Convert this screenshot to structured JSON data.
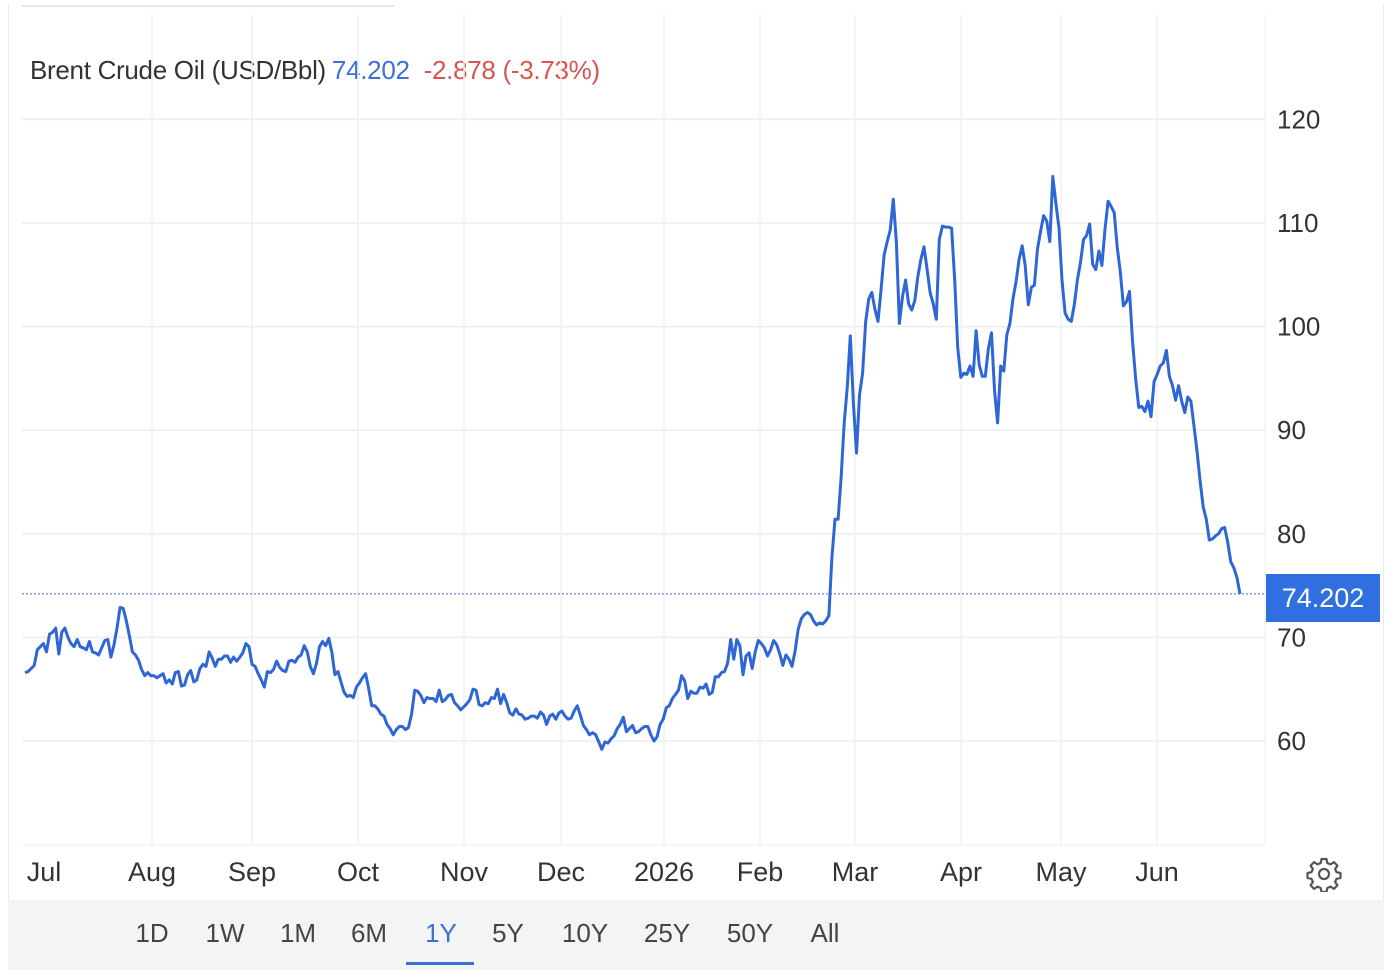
{
  "header": {
    "title": "Brent Crude Oil (USD/Bbl)",
    "price": "74.202",
    "change": "-2.878 (-3.73%)"
  },
  "colors": {
    "line": "#2f66d6",
    "price_text": "#3d6fd6",
    "change_text": "#d9534f",
    "badge_bg": "#2f6fe0",
    "grid": "#ededed"
  },
  "last_value_badge": "74.202",
  "range_selector": {
    "options": [
      "1D",
      "1W",
      "1M",
      "6M",
      "1Y",
      "5Y",
      "10Y",
      "25Y",
      "50Y",
      "All"
    ],
    "selected": "1Y"
  },
  "icons": {
    "settings": "gear-icon"
  },
  "chart_data": {
    "type": "line",
    "title": "Brent Crude Oil (USD/Bbl)",
    "ylim": [
      50,
      120
    ],
    "yticks": [
      60,
      70,
      80,
      90,
      100,
      110,
      120
    ],
    "x_tick_labels": [
      "Jul",
      "Aug",
      "Sep",
      "Oct",
      "Nov",
      "Dec",
      "2026",
      "Feb",
      "Mar",
      "Apr",
      "May",
      "Jun"
    ],
    "grid": true,
    "last_value_line": 74.202,
    "series": [
      {
        "values": [
          66.6,
          66.7,
          67,
          67.3,
          68.8,
          69.1,
          69.4,
          68.6,
          70.3,
          70.5,
          70.9,
          68.4,
          70.5,
          70.9,
          70,
          69.4,
          69.1,
          69.8,
          69.1,
          69,
          68.8,
          69.6,
          68.6,
          68.5,
          68.3,
          69,
          69.7,
          69.8,
          68.1,
          69.3,
          70.9,
          72.9,
          72.8,
          71.6,
          70.2,
          68.6,
          68.3,
          67.8,
          66.9,
          66.3,
          66.6,
          66.3,
          66.3,
          66.1,
          66.3,
          66.5,
          65.6,
          65.9,
          65.5,
          66.6,
          66.7,
          65.3,
          65.4,
          66.4,
          66.8,
          65.7,
          65.9,
          67,
          67.4,
          67.2,
          68.6,
          68,
          67.2,
          67.9,
          67.9,
          68.2,
          68.2,
          67.6,
          68.1,
          67.7,
          68.1,
          68.5,
          69.4,
          69.1,
          67.4,
          67.2,
          66.5,
          65.9,
          65.2,
          66.7,
          66.6,
          66.9,
          67.7,
          67.1,
          66.8,
          66.7,
          67.7,
          67.8,
          67.6,
          68.1,
          68.3,
          69.2,
          68.6,
          67.2,
          66.5,
          67.5,
          69.1,
          69.6,
          69.2,
          69.9,
          68.6,
          66.4,
          66.7,
          65.7,
          64.7,
          64.3,
          64.4,
          64.2,
          65.2,
          65.6,
          66.1,
          66.5,
          65.1,
          63.4,
          63.4,
          63.1,
          62.6,
          62.4,
          61.6,
          61.2,
          60.6,
          61.1,
          61.4,
          61.4,
          61.1,
          61.3,
          62.6,
          64.9,
          64.8,
          64.4,
          63.7,
          64.2,
          64.1,
          64.1,
          63.8,
          64.9,
          63.8,
          64,
          64.4,
          64.5,
          63.7,
          63.4,
          63,
          63.3,
          63.6,
          64,
          65,
          64.9,
          63.5,
          63.4,
          63.7,
          63.6,
          64.2,
          64.1,
          65,
          63.6,
          64.5,
          63.7,
          62.7,
          62.5,
          63.1,
          62.6,
          62.5,
          62.1,
          62.2,
          62.4,
          62.4,
          62.2,
          62.8,
          62.5,
          61.6,
          62.4,
          62.6,
          62.1,
          62.7,
          62.9,
          62.4,
          62.1,
          62.2,
          62.9,
          63.4,
          62.5,
          61.5,
          61.1,
          60.6,
          60.8,
          60.6,
          59.9,
          59.2,
          59.9,
          59.8,
          60.2,
          60.5,
          61.2,
          61.6,
          62.3,
          60.9,
          61.2,
          61.5,
          60.8,
          60.9,
          61.2,
          61.4,
          61.4,
          60.6,
          60,
          60.4,
          61.6,
          62.1,
          63.2,
          63.4,
          64.1,
          64.5,
          64.9,
          66.3,
          65.8,
          64.1,
          64.8,
          64.6,
          64.6,
          65.2,
          65.1,
          65.5,
          64.5,
          64.7,
          66.2,
          66.2,
          66.6,
          66.7,
          67.5,
          69.8,
          67.9,
          69.8,
          69.2,
          66.4,
          68.2,
          68.5,
          67,
          68.6,
          69.7,
          69.4,
          69,
          68.2,
          68.8,
          69.7,
          69.3,
          68.4,
          67.3,
          68.3,
          67.9,
          67.2,
          68.7,
          70.8,
          71.8,
          72.2,
          72.4,
          72.2,
          71.6,
          71.2,
          71.4,
          71.3,
          71.6,
          72.1,
          77.7,
          81.4,
          81.4,
          85.4,
          90.7,
          94.2,
          99.1,
          92.6,
          87.8,
          93.4,
          95.5,
          100.5,
          102.7,
          103.3,
          101.7,
          100.5,
          103.5,
          106.9,
          108.2,
          109.3,
          112.3,
          108.1,
          100.3,
          102.9,
          104.5,
          102.2,
          101.6,
          102.5,
          104.8,
          106.5,
          107.7,
          105.6,
          103.3,
          102.2,
          100.7,
          108.4,
          109.7,
          109.6,
          109.6,
          109.5,
          104.5,
          98,
          95.1,
          95.5,
          95.4,
          96.2,
          95.2,
          99.6,
          96.3,
          95.2,
          95.2,
          97.9,
          99.4,
          93.9,
          90.7,
          96.2,
          95.7,
          99.2,
          100.3,
          102.7,
          104.3,
          106.5,
          107.8,
          105.9,
          102.1,
          103.8,
          104,
          107.5,
          109.2,
          110.7,
          110.2,
          108.2,
          114.5,
          111.9,
          109.5,
          104.5,
          101.3,
          100.7,
          100.5,
          102.1,
          104.5,
          106.2,
          108.4,
          108.8,
          109.9,
          106,
          105.5,
          107.3,
          105.9,
          109.4,
          112.1,
          111.6,
          111,
          107.6,
          105.3,
          102,
          102.4,
          103.4,
          98.5,
          94.9,
          92.2,
          92.3,
          91.8,
          92.8,
          91.3,
          94.7,
          95.4,
          96.2,
          96.5,
          97.7,
          95.2,
          94.3,
          92.9,
          94.3,
          92.8,
          91.7,
          93.2,
          92.8,
          90.4,
          88,
          85.1,
          82.6,
          81.4,
          79.4,
          79.5,
          79.8,
          80,
          80.5,
          80.6,
          79.2,
          77.3,
          76.7,
          75.8,
          74.2
        ]
      }
    ]
  }
}
